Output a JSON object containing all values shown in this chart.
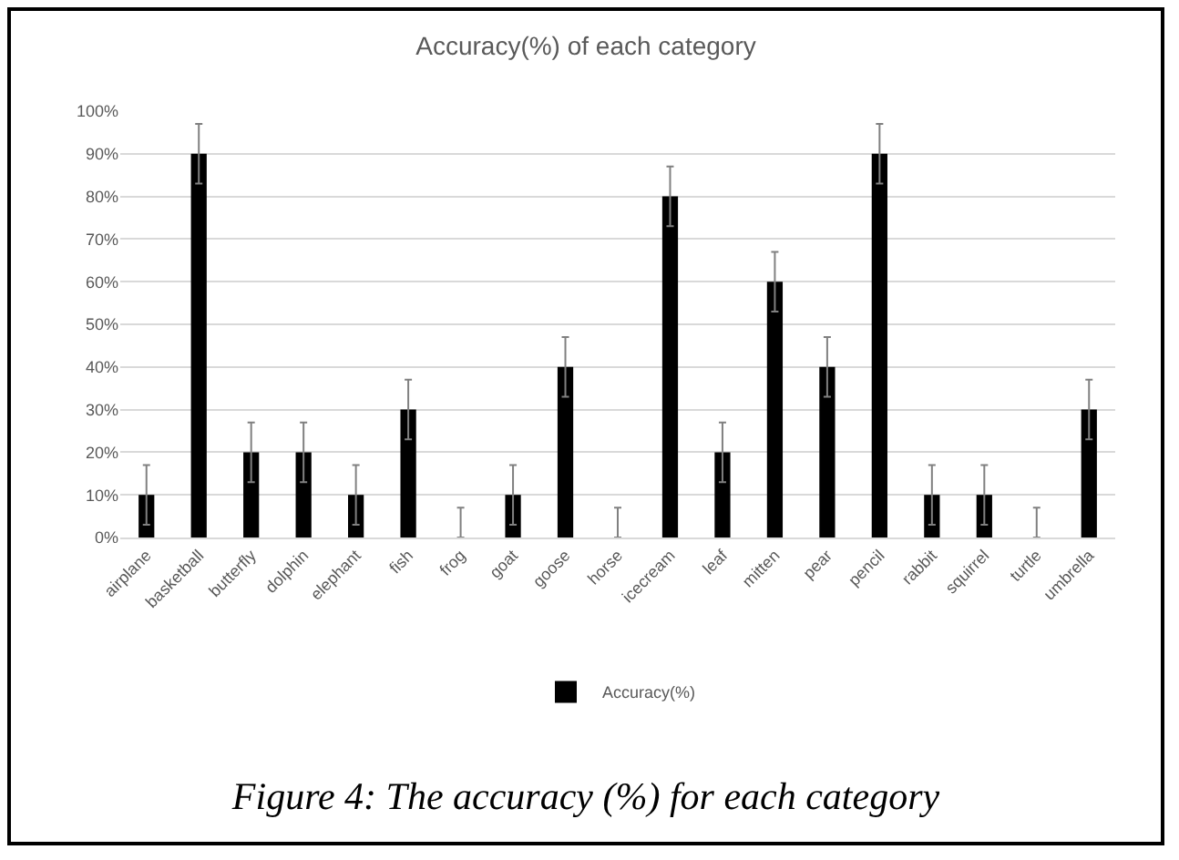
{
  "chart_data": {
    "type": "bar",
    "title": "Accuracy(%) of each category",
    "categories": [
      "airplane",
      "basketball",
      "butterfly",
      "dolphin",
      "elephant",
      "fish",
      "frog",
      "goat",
      "goose",
      "horse",
      "icecream",
      "leaf",
      "mitten",
      "pear",
      "pencil",
      "rabbit",
      "squirrel",
      "turtle",
      "umbrella"
    ],
    "series": [
      {
        "name": "Accuracy(%)",
        "color": "#000000",
        "values": [
          10,
          90,
          20,
          20,
          10,
          30,
          0,
          10,
          40,
          0,
          80,
          20,
          60,
          40,
          90,
          10,
          10,
          0,
          30
        ],
        "errors": [
          7,
          7,
          7,
          7,
          7,
          7,
          [
            0,
            7
          ],
          7,
          7,
          [
            0,
            7
          ],
          7,
          7,
          7,
          7,
          7,
          7,
          7,
          [
            0,
            7
          ],
          7
        ]
      }
    ],
    "ylim": [
      0,
      100
    ],
    "yticks": [
      {
        "value": 0,
        "label": "0%"
      },
      {
        "value": 10,
        "label": "10%"
      },
      {
        "value": 20,
        "label": "20%"
      },
      {
        "value": 30,
        "label": "30%"
      },
      {
        "value": 40,
        "label": "40%"
      },
      {
        "value": 50,
        "label": "50%"
      },
      {
        "value": 60,
        "label": "60%"
      },
      {
        "value": 70,
        "label": "70%"
      },
      {
        "value": 80,
        "label": "80%"
      },
      {
        "value": 90,
        "label": "90%"
      },
      {
        "value": 100,
        "label": "100%"
      }
    ],
    "grid": "y",
    "legend": "bottom",
    "annotations": [
      "Figure 4: The accuracy (%) for each category"
    ]
  }
}
